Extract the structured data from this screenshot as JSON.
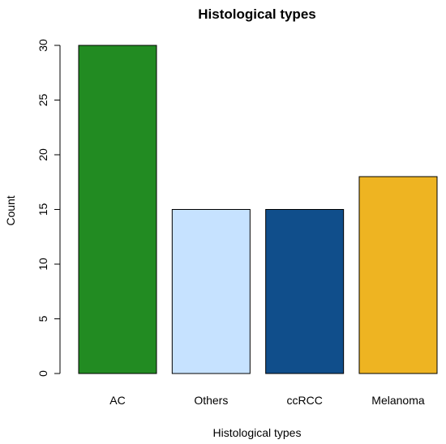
{
  "chart_data": {
    "type": "bar",
    "title": "Histological types",
    "xlabel": "Histological types",
    "ylabel": "Count",
    "categories": [
      "AC",
      "Others",
      "ccRCC",
      "Melanoma"
    ],
    "values": [
      30,
      15,
      15,
      18
    ],
    "colors": [
      "#228B22",
      "#C6E2FF",
      "#104E8B",
      "#EEB422"
    ],
    "ylim": [
      0,
      30
    ],
    "yticks": [
      0,
      5,
      10,
      15,
      20,
      25,
      30
    ],
    "grid": false,
    "legend": "none"
  }
}
